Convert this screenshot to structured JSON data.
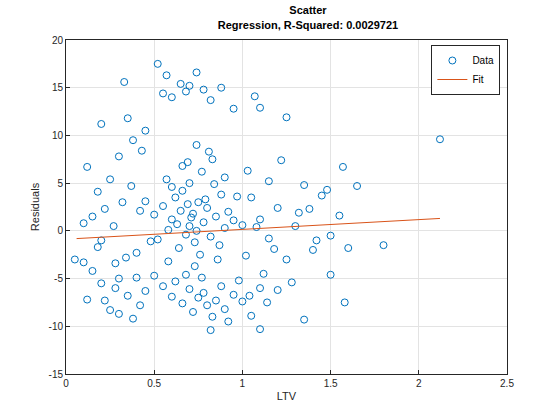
{
  "chart_data": {
    "type": "scatter",
    "title": "Scatter",
    "subtitle": "Regression, R-Squared: 0.0029721",
    "x_label": "LTV",
    "y_label": "Residuals",
    "xlim": [
      0,
      2.5
    ],
    "xticks": [
      0,
      0.5,
      1,
      1.5,
      2,
      2.5
    ],
    "ylim": [
      -15,
      20
    ],
    "yticks": [
      -15,
      -10,
      -5,
      0,
      5,
      10,
      15,
      20
    ],
    "grid": true,
    "legend": "upper right",
    "series": [
      {
        "name": "Data",
        "type": "scatter",
        "marker": "circle-open",
        "color": "#0072BD",
        "x": [
          0.6,
          0.65,
          0.7,
          0.72,
          0.75,
          0.68,
          0.62,
          0.8,
          0.78,
          0.85,
          0.9,
          0.58,
          0.55,
          0.66,
          0.73,
          0.82,
          0.88,
          0.92,
          0.7,
          0.64,
          0.76,
          0.6,
          0.84,
          0.95,
          0.5,
          0.52,
          0.69,
          0.74,
          0.79,
          0.71,
          0.63,
          0.87,
          0.97,
          1.0,
          0.45,
          0.48,
          0.77,
          0.66,
          0.83,
          0.9,
          0.57,
          0.81,
          0.74,
          0.69,
          0.62,
          0.7,
          0.75,
          0.8,
          0.78,
          0.85,
          0.9,
          0.72,
          0.66,
          0.83,
          0.88,
          0.95,
          0.68,
          0.6,
          0.77,
          0.92,
          1.0,
          0.98,
          0.55,
          0.5,
          0.45,
          0.82,
          1.05,
          1.1,
          0.73,
          0.58,
          0.86,
          0.05,
          0.1,
          0.15,
          0.2,
          0.12,
          0.22,
          0.28,
          0.25,
          0.3,
          0.35,
          0.4,
          0.18,
          0.15,
          0.12,
          0.18,
          0.2,
          0.22,
          0.25,
          0.3,
          0.33,
          0.35,
          0.38,
          0.32,
          0.27,
          0.4,
          0.42,
          0.37,
          0.28,
          0.43,
          0.45,
          0.3,
          0.38,
          0.2,
          0.1,
          0.34,
          0.42,
          0.52,
          0.57,
          0.6,
          0.65,
          0.7,
          0.74,
          0.78,
          0.55,
          0.82,
          0.95,
          1.07,
          1.1,
          1.25,
          0.88,
          0.68,
          1.05,
          1.1,
          1.15,
          1.2,
          1.25,
          1.3,
          1.35,
          1.4,
          1.45,
          1.5,
          1.55,
          1.6,
          1.65,
          1.57,
          1.58,
          1.8,
          2.12,
          1.35,
          1.1,
          1.12,
          1.2,
          1.28,
          1.03,
          1.15,
          1.38,
          1.5,
          1.02,
          1.08,
          1.18,
          1.22,
          1.42,
          1.32,
          1.48,
          1.04,
          1.14
        ],
        "values": [
          1.2,
          2.1,
          0.5,
          1.8,
          3.0,
          -0.4,
          3.5,
          2.4,
          0.9,
          1.5,
          0.3,
          0.1,
          2.6,
          4.2,
          -1.2,
          -0.6,
          3.8,
          2.0,
          5.0,
          -1.8,
          -2.5,
          4.6,
          4.9,
          1.1,
          1.7,
          -0.9,
          2.8,
          0.0,
          3.3,
          1.4,
          0.7,
          -1.5,
          3.6,
          0.6,
          3.1,
          -1.1,
          6.2,
          6.8,
          7.5,
          5.6,
          5.4,
          8.3,
          9.0,
          7.2,
          -5.3,
          -6.1,
          -7.0,
          -7.8,
          -6.5,
          -7.3,
          -8.2,
          -8.5,
          -7.6,
          -9.0,
          -5.8,
          -6.7,
          -4.6,
          -6.9,
          -4.9,
          -9.5,
          -7.4,
          -5.2,
          -5.8,
          -4.7,
          -6.3,
          -10.4,
          -8.9,
          -6.0,
          -3.7,
          -3.2,
          -3.0,
          -3.0,
          -3.3,
          -4.2,
          -5.5,
          -7.2,
          -7.3,
          -6.0,
          -8.3,
          -5.0,
          -6.8,
          -4.9,
          -1.7,
          1.5,
          6.7,
          4.1,
          11.2,
          2.3,
          5.4,
          7.8,
          15.6,
          11.8,
          9.5,
          3.0,
          0.5,
          -2.3,
          2.1,
          4.7,
          -3.4,
          8.4,
          10.5,
          -8.7,
          -9.2,
          -1.0,
          0.8,
          -2.8,
          -7.8,
          17.5,
          16.3,
          14.0,
          15.4,
          15.2,
          16.6,
          14.8,
          14.4,
          13.7,
          12.8,
          14.1,
          12.9,
          11.9,
          15.0,
          14.6,
          3.5,
          1.2,
          -0.8,
          2.4,
          -3.0,
          0.5,
          4.8,
          -2.0,
          3.7,
          -0.5,
          1.6,
          -1.8,
          4.7,
          6.7,
          -7.5,
          -1.5,
          9.6,
          -9.3,
          -10.3,
          -4.5,
          -6.2,
          -5.4,
          6.3,
          5.2,
          2.3,
          -4.6,
          -2.6,
          0.4,
          -1.9,
          7.4,
          -1.0,
          1.9,
          4.3,
          -6.8,
          -7.5
        ]
      },
      {
        "name": "Fit",
        "type": "line",
        "line_style": "solid",
        "color": "#D95319",
        "x": [
          0.06,
          2.12
        ],
        "values": [
          -0.81,
          1.3
        ]
      }
    ]
  }
}
